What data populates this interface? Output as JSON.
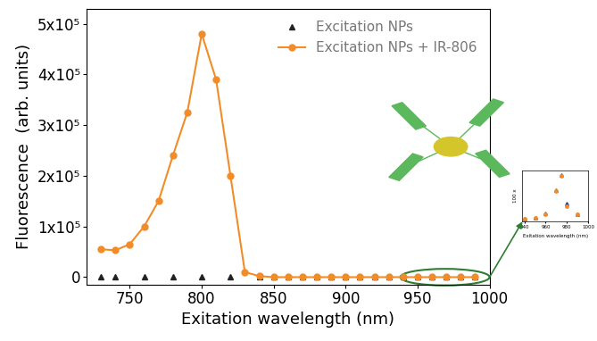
{
  "chart_data": [
    {
      "type": "line",
      "x_label": "Exitation wavelength (nm)",
      "y_label": "Fluorescence  (arb. units)",
      "x": [
        730,
        740,
        750,
        760,
        770,
        780,
        790,
        800,
        810,
        820,
        830,
        840,
        850,
        860,
        870,
        880,
        890,
        900,
        910,
        920,
        930,
        940,
        950,
        960,
        970,
        980,
        990
      ],
      "series": [
        {
          "name": "Excitation NPs",
          "color": "#222222",
          "marker": "triangle",
          "line_style": "none",
          "values": [
            0,
            0,
            null,
            0,
            null,
            0,
            null,
            0,
            null,
            0,
            null,
            0,
            0,
            0,
            0,
            0,
            0,
            0,
            0,
            0,
            0,
            0,
            0,
            0,
            0,
            0,
            0
          ]
        },
        {
          "name": "Excitation NPs + IR-806",
          "color": "#f28c28",
          "marker": "circle",
          "line_style": "solid",
          "values": [
            55000,
            53000,
            65000,
            100000,
            150000,
            240000,
            325000,
            480000,
            390000,
            200000,
            10000,
            2000,
            0,
            0,
            0,
            0,
            0,
            0,
            0,
            0,
            0,
            0,
            0,
            0,
            0,
            0,
            0
          ]
        }
      ],
      "xlim": [
        720,
        1000
      ],
      "xticks": [
        750,
        800,
        850,
        900,
        950,
        1000
      ],
      "ylim": [
        -15000,
        530000
      ],
      "yticks": [
        0,
        {
          "value": 100000,
          "label": "1x10⁵"
        },
        {
          "value": 200000,
          "label": "2x10⁵"
        },
        {
          "value": 300000,
          "label": "3x10⁵"
        },
        {
          "value": 400000,
          "label": "4x10⁵"
        },
        {
          "value": 500000,
          "label": "5x10⁵"
        }
      ],
      "legend": "upper right",
      "grid": false
    },
    {
      "type": "scatter",
      "x_label": "Exitation wavelength (nm)",
      "y_label": "100 x",
      "x": [
        940,
        950,
        960,
        970,
        975,
        980,
        990
      ],
      "series": [
        {
          "color": "#1f3f8f",
          "marker": "triangle",
          "values": [
            0,
            20,
            100,
            560,
            860,
            290,
            90
          ]
        },
        {
          "color": "#f28c28",
          "marker": "circle",
          "values": [
            0,
            15,
            95,
            540,
            840,
            250,
            85
          ]
        }
      ],
      "xlim": [
        938,
        1000
      ],
      "xticks": [
        940,
        960,
        980,
        1000
      ],
      "ylim": [
        -60,
        950
      ],
      "tick_labels": "x",
      "grid": false
    }
  ]
}
